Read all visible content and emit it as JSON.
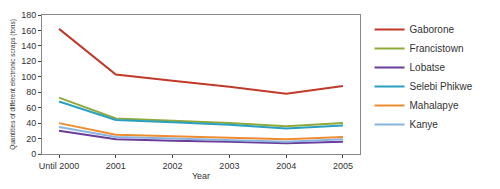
{
  "chart_data": {
    "type": "line",
    "x_label": "Year",
    "y_label": "Quantities of different electronic scraps (tons)",
    "categories": [
      "Until 2000",
      "2001",
      "2002",
      "2003",
      "2004",
      "2005"
    ],
    "series": [
      {
        "name": "Gaborone",
        "color": "#c0392b",
        "values": [
          162,
          103,
          95,
          87,
          78,
          88
        ]
      },
      {
        "name": "Francistown",
        "color": "#8faa3b",
        "values": [
          73,
          46,
          43,
          40,
          36,
          40
        ]
      },
      {
        "name": "Lobatse",
        "color": "#6a3d9a",
        "values": [
          30,
          19,
          17,
          16,
          14,
          16
        ]
      },
      {
        "name": "Selebi Phikwe",
        "color": "#2aa0c0",
        "values": [
          68,
          44,
          41,
          38,
          33,
          37
        ]
      },
      {
        "name": "Mahalapye",
        "color": "#f08c30",
        "values": [
          40,
          25,
          23,
          21,
          19,
          22
        ]
      },
      {
        "name": "Kanye",
        "color": "#8ab4e0",
        "values": [
          35,
          22,
          20,
          18,
          16,
          19
        ]
      }
    ],
    "ylim": [
      0,
      180
    ],
    "yticks": [
      0,
      20,
      40,
      60,
      80,
      100,
      120,
      140,
      160,
      180
    ],
    "grid": false,
    "legend": "right"
  }
}
